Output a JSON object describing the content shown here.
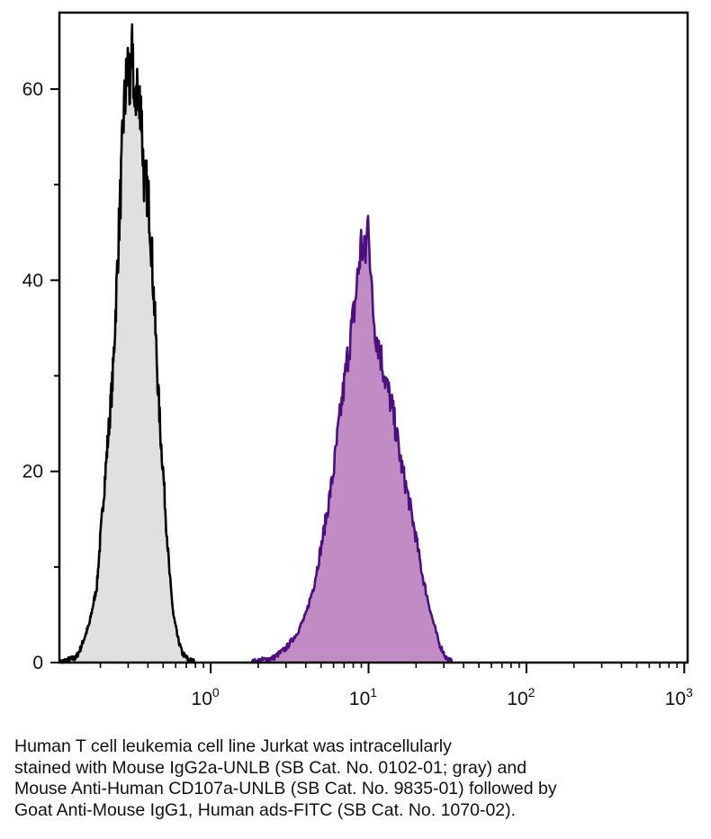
{
  "chart_data": {
    "type": "area",
    "title": "",
    "xlabel": "",
    "ylabel": "",
    "x_scale": "log",
    "xlim": [
      0.11,
      1050
    ],
    "ylim": [
      0,
      68
    ],
    "x_ticks": [
      {
        "value": 1,
        "base": "10",
        "exp": "0"
      },
      {
        "value": 10,
        "base": "10",
        "exp": "1"
      },
      {
        "value": 100,
        "base": "10",
        "exp": "2"
      },
      {
        "value": 1000,
        "base": "10",
        "exp": "3"
      }
    ],
    "y_ticks": [
      0,
      20,
      40,
      60
    ],
    "y_minor_ticks": [
      10,
      30,
      50
    ],
    "grid": false,
    "legend": "none",
    "series": [
      {
        "color_fill": "#e0e0e0",
        "color_line": "#000000",
        "x": [
          0.11,
          0.14,
          0.15,
          0.17,
          0.19,
          0.2,
          0.22,
          0.24,
          0.25,
          0.26,
          0.27,
          0.28,
          0.29,
          0.3,
          0.31,
          0.32,
          0.33,
          0.34,
          0.35,
          0.36,
          0.37,
          0.38,
          0.39,
          0.4,
          0.41,
          0.42,
          0.44,
          0.46,
          0.48,
          0.5,
          0.52,
          0.55,
          0.58,
          0.62,
          0.66,
          0.72,
          0.8
        ],
        "y": [
          0,
          0.5,
          1.5,
          4,
          8,
          13,
          22,
          30,
          37,
          44,
          50,
          57,
          60,
          63,
          59,
          65,
          56,
          62,
          57,
          60,
          54,
          50,
          50,
          49,
          47,
          44,
          37,
          30,
          24,
          20,
          15,
          9,
          5,
          2.5,
          1,
          0.3,
          0
        ]
      },
      {
        "color_fill": "#c18bc4",
        "color_line": "#4b0f82",
        "x": [
          1.8,
          2.5,
          3.0,
          3.5,
          4.0,
          4.5,
          5.0,
          5.5,
          6.0,
          6.5,
          7.0,
          7.5,
          8.0,
          8.5,
          9.0,
          9.5,
          10.0,
          10.5,
          11.0,
          12.0,
          13.0,
          14.0,
          15.0,
          16.0,
          18.0,
          20.0,
          22.0,
          25.0,
          28.0,
          31.0,
          34.0
        ],
        "y": [
          0,
          0.5,
          1.5,
          3,
          5,
          8,
          12,
          16,
          20,
          25,
          29,
          33,
          36,
          40,
          44,
          42,
          47,
          38,
          35,
          32,
          29,
          27,
          24,
          21,
          17,
          13,
          9,
          5,
          2,
          0.5,
          0
        ]
      }
    ]
  },
  "caption": {
    "lines": [
      "Human T cell leukemia cell line Jurkat was intracellularly",
      "stained with Mouse IgG2a-UNLB (SB Cat. No. 0102-01; gray) and",
      "Mouse Anti-Human CD107a-UNLB (SB Cat. No. 9835-01) followed by",
      "Goat Anti-Mouse IgG1, Human ads-FITC (SB Cat. No. 1070-02)."
    ]
  }
}
